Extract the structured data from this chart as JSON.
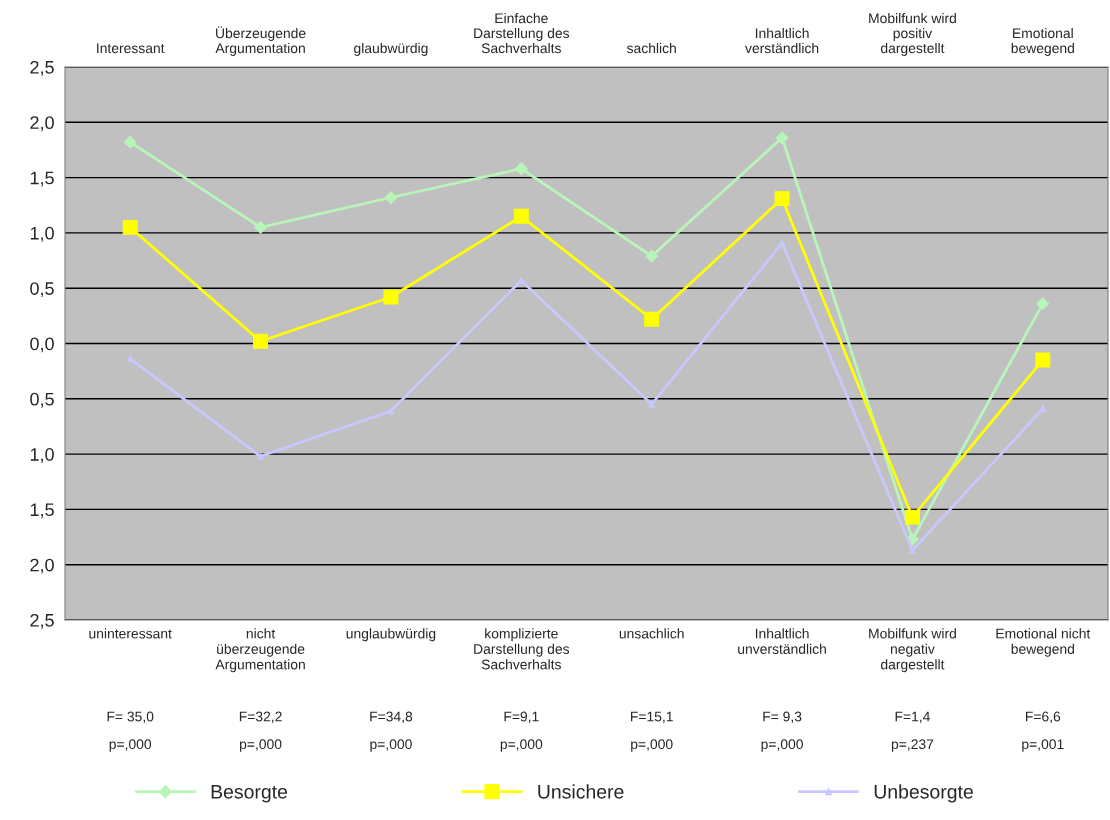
{
  "chart_data": {
    "type": "line",
    "categories": [
      "Interessant",
      "Überzeugende\nArgumentation",
      "glaubwürdig",
      "Einfache\nDarstellung des\nSachverhalts",
      "sachlich",
      "Inhaltlich\nverständlich",
      "Mobilfunk wird\npositiv\ndargestellt",
      "Emotional\nbewegend"
    ],
    "series": [
      {
        "name": "Besorgte",
        "color": "#b8f5b8",
        "marker": "diamond",
        "values": [
          1.82,
          1.05,
          1.32,
          1.58,
          0.79,
          1.86,
          -1.77,
          0.36
        ]
      },
      {
        "name": "Unsichere",
        "color": "#ffff00",
        "marker": "square",
        "values": [
          1.05,
          0.02,
          0.42,
          1.15,
          0.22,
          1.31,
          -1.57,
          -0.15
        ]
      },
      {
        "name": "Unbesorgte",
        "color": "#c8c8ff",
        "marker": "triangle",
        "values": [
          -0.14,
          -1.02,
          -0.61,
          0.57,
          -0.55,
          0.91,
          -1.87,
          -0.59
        ]
      }
    ],
    "ylim": [
      -2.5,
      2.5
    ],
    "yticks": [
      {
        "value": 2.5,
        "label": "2,5"
      },
      {
        "value": 2.0,
        "label": "2,0"
      },
      {
        "value": 1.5,
        "label": "1,5"
      },
      {
        "value": 1.0,
        "label": "1,0"
      },
      {
        "value": 0.5,
        "label": "0,5"
      },
      {
        "value": 0,
        "label": "0,0"
      },
      {
        "value": -0.5,
        "label": "0,5"
      },
      {
        "value": -1.0,
        "label": "1,0"
      },
      {
        "value": -1.5,
        "label": "1,5"
      },
      {
        "value": -2.0,
        "label": "2,0"
      },
      {
        "value": -2.5,
        "label": "2,5"
      }
    ],
    "grid": "y",
    "legend": "bottom",
    "annotations": [
      "uninteressant",
      "nicht\nüberzeugende\nArgumentation",
      "unglaubwürdig",
      "komplizierte\nDarstellung des\nSachverhalts",
      "unsachlich",
      "Inhaltlich\nunverständlich",
      "Mobilfunk wird\nnegativ\ndargestellt",
      "Emotional nicht\nbewegend",
      "F= 35,0",
      "F=32,2",
      "F=34,8",
      "F=9,1",
      "F=15,1",
      "F= 9,3",
      "F=1,4",
      "F=6,6",
      "p=,000",
      "p=,000",
      "p=,000",
      "p=,000",
      "p=,000",
      "p=,000",
      "p=,237",
      "p=,001"
    ]
  }
}
